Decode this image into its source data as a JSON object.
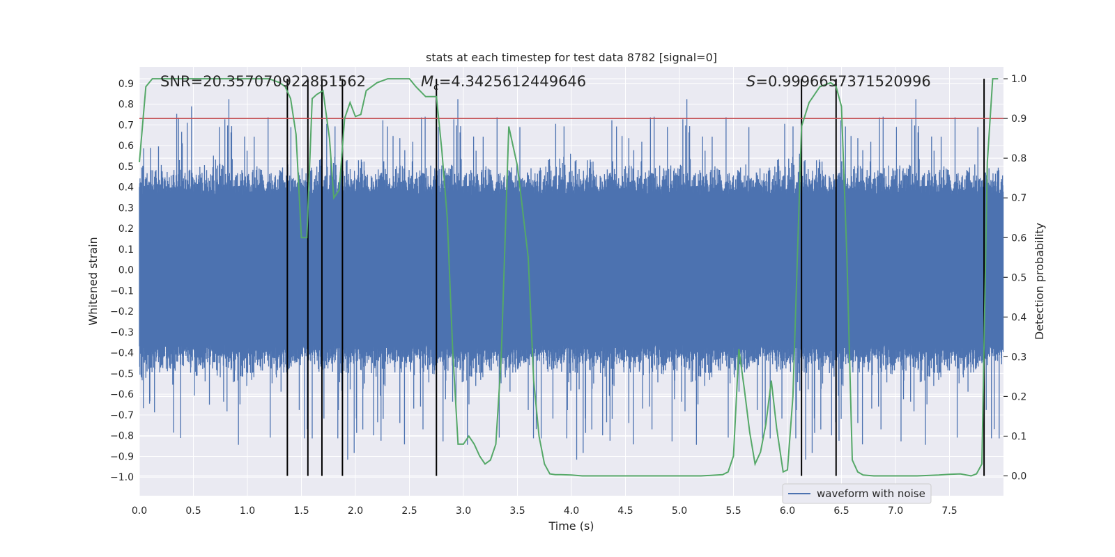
{
  "chart_data": {
    "type": "line",
    "title": "stats at each timestep for test data 8782 [signal=0]",
    "xlabel": "Time (s)",
    "ylabel_left": "Whitened strain",
    "ylabel_right": "Detection probability",
    "xlim": [
      0,
      8
    ],
    "ylim_left": [
      -1.09,
      0.98
    ],
    "ylim_right": [
      -0.05,
      1.03
    ],
    "x_ticks": [
      "0.0",
      "0.5",
      "1.0",
      "1.5",
      "2.0",
      "2.5",
      "3.0",
      "3.5",
      "4.0",
      "4.5",
      "5.0",
      "5.5",
      "6.0",
      "6.5",
      "7.0",
      "7.5"
    ],
    "y_ticks_left": [
      "0.9",
      "0.8",
      "0.7",
      "0.6",
      "0.5",
      "0.4",
      "0.3",
      "0.2",
      "0.1",
      "0.0",
      "−0.1",
      "−0.2",
      "−0.3",
      "−0.4",
      "−0.5",
      "−0.6",
      "−0.7",
      "−0.8",
      "−0.9",
      "−1.0"
    ],
    "y_ticks_right": [
      "1.0",
      "0.9",
      "0.8",
      "0.7",
      "0.6",
      "0.5",
      "0.4",
      "0.3",
      "0.2",
      "0.1",
      "0.0"
    ],
    "grid": true,
    "legend_position": "lower-right",
    "legend": [
      "waveform with noise"
    ],
    "annotations": {
      "snr": "SNR=20.357070922851562",
      "mc_symbol": "M",
      "mc_subscript": "c",
      "mc_value": "=4.3425612449646",
      "s_symbol": "S",
      "s_value": "=0.9996657371520996"
    },
    "threshold": {
      "axis": "right",
      "value": 0.9,
      "color": "#c44e52"
    },
    "vertical_markers_x": [
      1.37,
      1.56,
      1.69,
      1.88,
      2.75,
      6.13,
      6.45,
      7.82
    ],
    "series": [
      {
        "name": "waveform with noise",
        "axis": "left",
        "color": "#4c72b0",
        "description": "dense noisy whitened strain, approx. symmetric in [-1.0, 0.9]"
      },
      {
        "axis": "right",
        "color": "#55a868",
        "x": [
          0.0,
          0.06,
          0.12,
          0.2,
          0.4,
          0.6,
          0.8,
          1.0,
          1.2,
          1.3,
          1.35,
          1.4,
          1.45,
          1.5,
          1.55,
          1.6,
          1.64,
          1.7,
          1.76,
          1.8,
          1.85,
          1.9,
          1.95,
          2.0,
          2.05,
          2.1,
          2.2,
          2.3,
          2.4,
          2.5,
          2.56,
          2.65,
          2.7,
          2.75,
          2.8,
          2.85,
          2.9,
          2.95,
          3.0,
          3.05,
          3.1,
          3.15,
          3.2,
          3.25,
          3.3,
          3.35,
          3.42,
          3.5,
          3.6,
          3.65,
          3.7,
          3.75,
          3.8,
          3.85,
          3.9,
          4.0,
          4.1,
          4.2,
          4.4,
          4.6,
          4.8,
          5.0,
          5.2,
          5.4,
          5.45,
          5.5,
          5.55,
          5.6,
          5.65,
          5.7,
          5.75,
          5.8,
          5.85,
          5.9,
          5.96,
          6.0,
          6.05,
          6.1,
          6.13,
          6.2,
          6.3,
          6.4,
          6.45,
          6.5,
          6.55,
          6.6,
          6.65,
          6.7,
          6.8,
          7.0,
          7.2,
          7.4,
          7.5,
          7.6,
          7.7,
          7.75,
          7.8,
          7.85,
          7.9,
          7.95
        ],
        "y": [
          0.79,
          0.98,
          1.0,
          1.0,
          1.0,
          1.0,
          1.0,
          1.0,
          1.0,
          0.99,
          0.98,
          0.95,
          0.86,
          0.6,
          0.6,
          0.95,
          0.96,
          0.97,
          0.85,
          0.7,
          0.72,
          0.9,
          0.94,
          0.905,
          0.91,
          0.97,
          0.99,
          1.0,
          1.0,
          1.0,
          0.98,
          0.955,
          0.955,
          0.955,
          0.82,
          0.65,
          0.32,
          0.08,
          0.08,
          0.1,
          0.08,
          0.05,
          0.03,
          0.04,
          0.08,
          0.3,
          0.88,
          0.78,
          0.55,
          0.24,
          0.1,
          0.03,
          0.005,
          0.003,
          0.003,
          0.002,
          0.0,
          0.0,
          0.0,
          0.0,
          0.0,
          0.0,
          0.0,
          0.003,
          0.01,
          0.05,
          0.32,
          0.22,
          0.11,
          0.03,
          0.06,
          0.13,
          0.24,
          0.12,
          0.01,
          0.015,
          0.2,
          0.62,
          0.88,
          0.94,
          0.98,
          0.99,
          0.98,
          0.93,
          0.55,
          0.04,
          0.01,
          0.002,
          0.0,
          0.0,
          0.0,
          0.002,
          0.004,
          0.005,
          0.0,
          0.005,
          0.03,
          0.79,
          1.0,
          1.0
        ]
      }
    ]
  }
}
